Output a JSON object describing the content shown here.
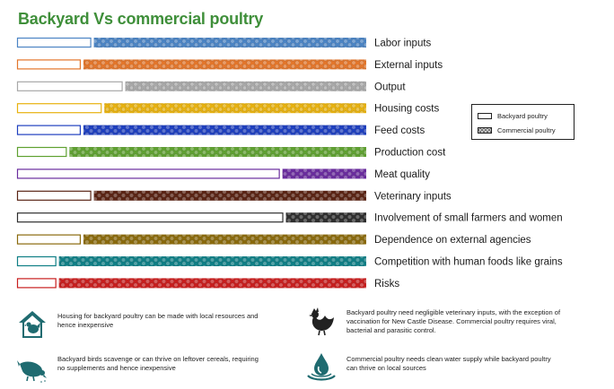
{
  "title": "Backyard Vs commercial poultry",
  "legend": {
    "backyard": "Backyard poultry",
    "commercial": "Commercial poultry"
  },
  "chart_data": {
    "type": "bar",
    "stacked": true,
    "orientation": "horizontal",
    "axes_visible": false,
    "legend_position": "right",
    "categories": [
      "Labor inputs",
      "External inputs",
      "Output",
      "Housing costs",
      "Feed costs",
      "Production cost",
      "Meat quality",
      "Veterinary inputs",
      "Involvement of small farmers and women",
      "Dependence on external agencies",
      "Competition with human foods like grains",
      "Risks"
    ],
    "series": [
      {
        "name": "Backyard poultry",
        "values": [
          22,
          19,
          31,
          25,
          19,
          15,
          76,
          22,
          77,
          19,
          12,
          12
        ]
      },
      {
        "name": "Commercial poultry",
        "values": [
          78,
          81,
          69,
          75,
          81,
          85,
          24,
          78,
          23,
          81,
          88,
          88
        ]
      }
    ],
    "colors": [
      "#4b84c4",
      "#e3762b",
      "#a8a8a8",
      "#e8b20f",
      "#1e3fbf",
      "#5fa131",
      "#6a2c9e",
      "#5a2414",
      "#2e2e2e",
      "#8a6a0c",
      "#0f7f86",
      "#c81e1e"
    ]
  },
  "notes": [
    {
      "icon": "house-bird-icon",
      "text": "Housing for backyard poultry can be made with local resources and hence inexpensive"
    },
    {
      "icon": "hen-icon",
      "text": "Backyard poultry need negligible veterinary inputs, with the exception of vaccination for New Castle Disease. Commercial poultry requires viral, bacterial and parasitic control."
    },
    {
      "icon": "scavenging-bird-icon",
      "text": "Backyard birds scavenge or can thrive on leftover cereals, requiring no supplements and hence inexpensive"
    },
    {
      "icon": "water-drop-icon",
      "text": "Commercial poultry needs clean water supply while backyard poultry can thrive on local sources"
    }
  ]
}
